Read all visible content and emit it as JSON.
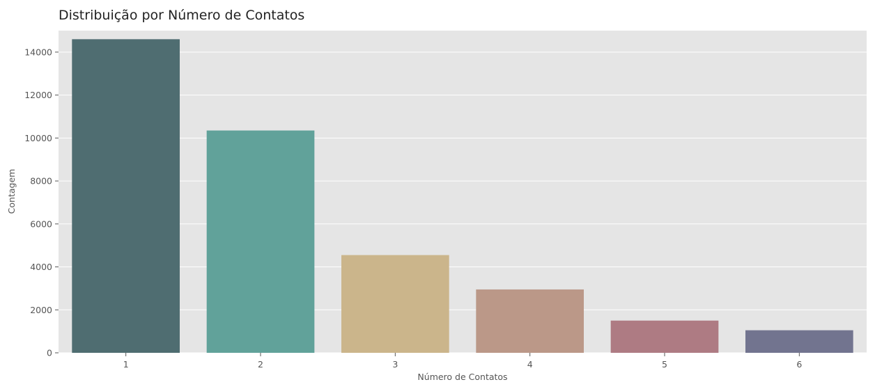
{
  "chart_data": {
    "type": "bar",
    "title": "Distribuição por Número de Contatos",
    "xlabel": "Número de Contatos",
    "ylabel": "Contagem",
    "categories": [
      "1",
      "2",
      "3",
      "4",
      "5",
      "6"
    ],
    "values": [
      14600,
      10350,
      4550,
      2950,
      1500,
      1050
    ],
    "colors": [
      "#4f6d71",
      "#61a29a",
      "#cbb58b",
      "#bb9888",
      "#ae7b83",
      "#72748f"
    ],
    "ylim": [
      0,
      15000
    ],
    "yticks": [
      0,
      2000,
      4000,
      6000,
      8000,
      10000,
      12000,
      14000
    ],
    "ytick_labels": [
      "0",
      "2000",
      "4000",
      "6000",
      "8000",
      "10000",
      "12000",
      "14000"
    ],
    "grid": true,
    "legend": "none",
    "background_color": "#e5e5e5",
    "grid_color": "#ffffff"
  }
}
